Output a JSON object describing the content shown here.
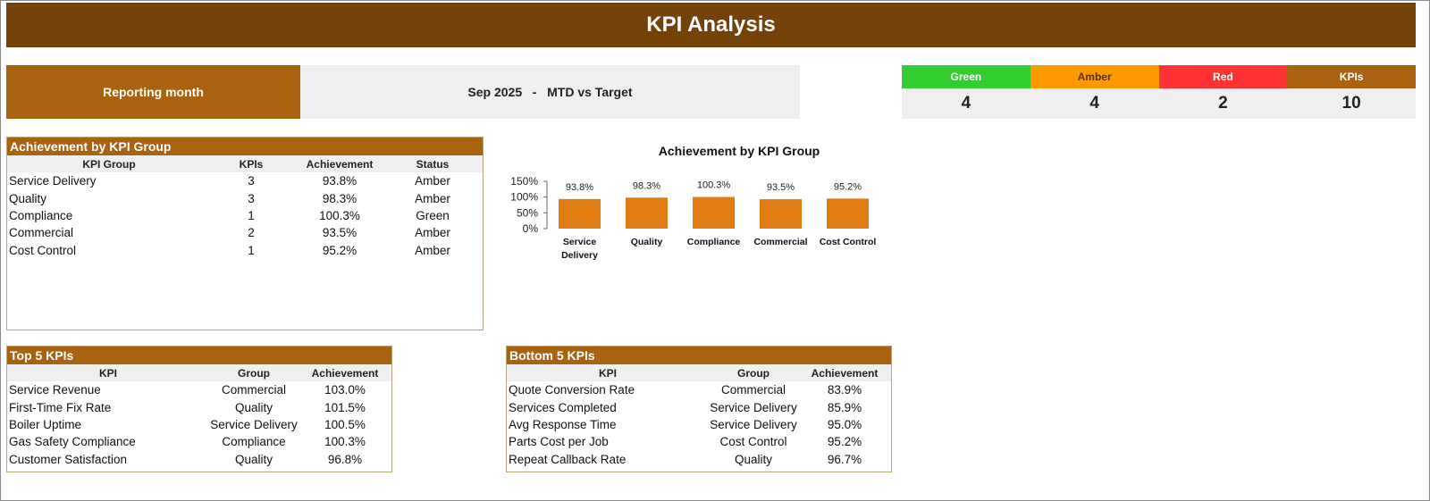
{
  "title": "KPI Analysis",
  "reporting": {
    "label": "Reporting month",
    "value": "Sep 2025   -   MTD vs Target"
  },
  "status": [
    {
      "label": "Green",
      "count": "4",
      "color": "#33cc33"
    },
    {
      "label": "Amber",
      "count": "4",
      "color": "#ff9900"
    },
    {
      "label": "Red",
      "count": "2",
      "color": "#ff3333"
    },
    {
      "label": "KPIs",
      "count": "10",
      "color": "#a9620f"
    }
  ],
  "group_table": {
    "title": "Achievement by KPI Group",
    "columns": [
      "KPI Group",
      "KPIs",
      "Achievement",
      "Status"
    ],
    "rows": [
      [
        "Service Delivery",
        "3",
        "93.8%",
        "Amber"
      ],
      [
        "Quality",
        "3",
        "98.3%",
        "Amber"
      ],
      [
        "Compliance",
        "1",
        "100.3%",
        "Green"
      ],
      [
        "Commercial",
        "2",
        "93.5%",
        "Amber"
      ],
      [
        "Cost Control",
        "1",
        "95.2%",
        "Amber"
      ]
    ]
  },
  "top5": {
    "title": "Top 5 KPIs",
    "columns": [
      "KPI",
      "Group",
      "Achievement"
    ],
    "rows": [
      [
        "Service Revenue",
        "Commercial",
        "103.0%"
      ],
      [
        "First-Time Fix Rate",
        "Quality",
        "101.5%"
      ],
      [
        "Boiler Uptime",
        "Service Delivery",
        "100.5%"
      ],
      [
        "Gas Safety Compliance",
        "Compliance",
        "100.3%"
      ],
      [
        "Customer Satisfaction",
        "Quality",
        "96.8%"
      ]
    ]
  },
  "bottom5": {
    "title": "Bottom 5 KPIs",
    "columns": [
      "KPI",
      "Group",
      "Achievement"
    ],
    "rows": [
      [
        "Quote Conversion Rate",
        "Commercial",
        "83.9%"
      ],
      [
        "Services Completed",
        "Service Delivery",
        "85.9%"
      ],
      [
        "Avg Response Time",
        "Service Delivery",
        "95.0%"
      ],
      [
        "Parts Cost per Job",
        "Cost Control",
        "95.2%"
      ],
      [
        "Repeat Callback Rate",
        "Quality",
        "96.7%"
      ]
    ]
  },
  "chart_data": {
    "type": "bar",
    "title": "Achievement by KPI Group",
    "categories": [
      [
        "Service",
        "Delivery"
      ],
      [
        "Quality"
      ],
      [
        "Compliance"
      ],
      [
        "Commercial"
      ],
      [
        "Cost Control"
      ]
    ],
    "values": [
      93.8,
      98.3,
      100.3,
      93.5,
      95.2
    ],
    "data_labels": [
      "93.8%",
      "98.3%",
      "100.3%",
      "93.5%",
      "95.2%"
    ],
    "yticks": [
      "0%",
      "50%",
      "100%",
      "150%"
    ],
    "ylim": [
      0,
      150
    ],
    "bar_color": "#e07c12",
    "grid": false,
    "legend": "none"
  }
}
